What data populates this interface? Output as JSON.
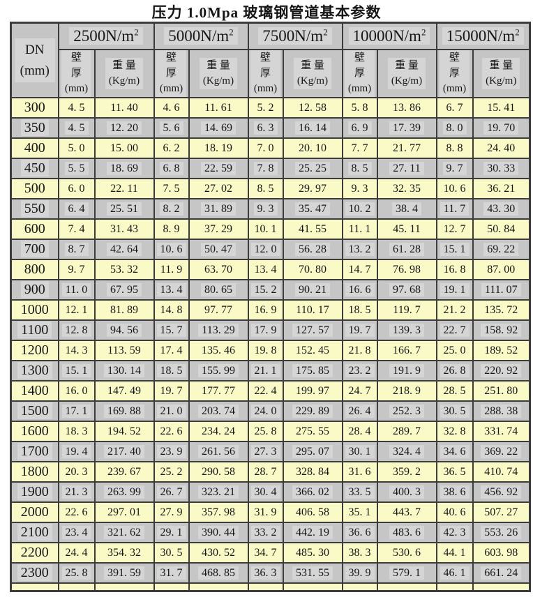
{
  "title": "压力 1.0Mpa 玻璃钢管道基本参数",
  "colors": {
    "row_yellow": "#fafac6",
    "row_gray": "#c6c6c6",
    "header_gray": "#c5c5c5",
    "border": "#3c3c3c",
    "page_background": "#ffffff"
  },
  "table": {
    "dn_header": "DN\n(mm)",
    "sub_headers": {
      "thickness": "壁\n厚\n(mm)",
      "weight": "重 量\n(Kg/m)"
    },
    "groups": [
      {
        "load": "2500N/m",
        "exp": "2"
      },
      {
        "load": "5000N/m",
        "exp": "2"
      },
      {
        "load": "7500N/m",
        "exp": "2"
      },
      {
        "load": "10000N/m",
        "exp": "2"
      },
      {
        "load": "15000N/m",
        "exp": "2"
      }
    ],
    "rows": [
      {
        "dn": "300",
        "cells": [
          "4. 5",
          "11. 40",
          "4. 6",
          "11. 61",
          "5. 2",
          "12. 58",
          "5. 8",
          "13. 86",
          "6. 7",
          "15. 41"
        ]
      },
      {
        "dn": "350",
        "cells": [
          "4. 5",
          "12. 20",
          "5. 6",
          "14. 69",
          "6. 3",
          "16. 14",
          "6. 9",
          "17. 39",
          "8. 0",
          "19. 70"
        ]
      },
      {
        "dn": "400",
        "cells": [
          "5. 0",
          "15. 00",
          "6. 2",
          "18. 19",
          "7. 0",
          "20. 10",
          "7. 7",
          "21. 77",
          "8. 8",
          "24. 40"
        ]
      },
      {
        "dn": "450",
        "cells": [
          "5. 5",
          "18. 69",
          "6. 8",
          "22. 59",
          "7. 8",
          "25. 25",
          "8. 5",
          "27. 11",
          "9. 7",
          "30. 33"
        ]
      },
      {
        "dn": "500",
        "cells": [
          "6. 0",
          "22. 11",
          "7. 5",
          "27. 02",
          "8. 5",
          "29. 97",
          "9. 3",
          "32. 35",
          "10. 6",
          "36. 21"
        ]
      },
      {
        "dn": "550",
        "cells": [
          "6. 4",
          "25. 51",
          "8. 2",
          "31. 89",
          "9. 3",
          "35. 47",
          "10. 2",
          "38. 4",
          "11. 7",
          "43. 30"
        ]
      },
      {
        "dn": "600",
        "cells": [
          "7. 4",
          "31. 43",
          "8. 9",
          "37. 29",
          "10. 1",
          "41. 55",
          "11. 1",
          "45. 11",
          "12. 7",
          "50. 84"
        ]
      },
      {
        "dn": "700",
        "cells": [
          "8. 7",
          "42. 64",
          "10. 6",
          "50. 47",
          "12. 0",
          "56. 28",
          "13. 2",
          "61. 28",
          "15. 1",
          "69. 22"
        ]
      },
      {
        "dn": "800",
        "cells": [
          "9. 7",
          "53. 32",
          "11. 9",
          "63. 70",
          "13. 4",
          "70. 80",
          "14. 7",
          "76. 98",
          "16. 8",
          "87. 00"
        ]
      },
      {
        "dn": "900",
        "cells": [
          "11. 0",
          "67. 95",
          "13. 4",
          "80. 65",
          "15. 2",
          "90. 21",
          "16. 6",
          "97. 68",
          "19. 1",
          "111. 07"
        ]
      },
      {
        "dn": "1000",
        "cells": [
          "12. 1",
          "81. 89",
          "14. 8",
          "97. 77",
          "16. 9",
          "110. 17",
          "18. 5",
          "119. 7",
          "21. 2",
          "135. 72"
        ]
      },
      {
        "dn": "1100",
        "cells": [
          "12. 8",
          "94. 56",
          "15. 7",
          "113. 29",
          "17. 9",
          "127. 57",
          "19. 7",
          "139. 3",
          "22. 7",
          "158. 92"
        ]
      },
      {
        "dn": "1200",
        "cells": [
          "14. 3",
          "113. 59",
          "17. 4",
          "135. 46",
          "19. 8",
          "152. 45",
          "21. 8",
          "166. 7",
          "25. 0",
          "189. 52"
        ]
      },
      {
        "dn": "1300",
        "cells": [
          "15. 1",
          "130. 14",
          "18. 5",
          "155. 99",
          "21. 1",
          "175. 85",
          "23. 2",
          "191. 9",
          "26. 8",
          "220. 92"
        ]
      },
      {
        "dn": "1400",
        "cells": [
          "16. 0",
          "147. 49",
          "19. 7",
          "177. 77",
          "22. 4",
          "199. 97",
          "24. 7",
          "218. 9",
          "28. 5",
          "251. 80"
        ]
      },
      {
        "dn": "1500",
        "cells": [
          "17. 1",
          "169. 88",
          "21. 0",
          "203. 74",
          "24. 0",
          "229. 89",
          "26. 4",
          "252. 3",
          "30. 5",
          "288. 38"
        ]
      },
      {
        "dn": "1600",
        "cells": [
          "18. 3",
          "194. 52",
          "22. 6",
          "234. 24",
          "25. 8",
          "275. 55",
          "28. 4",
          "289. 7",
          "32. 8",
          "331. 74"
        ]
      },
      {
        "dn": "1700",
        "cells": [
          "19. 4",
          "217. 40",
          "23. 9",
          "261. 56",
          "27. 3",
          "295. 07",
          "30. 1",
          "324. 4",
          "34. 6",
          "369. 22"
        ]
      },
      {
        "dn": "1800",
        "cells": [
          "20. 3",
          "239. 67",
          "25. 2",
          "290. 58",
          "28. 7",
          "328. 84",
          "31. 6",
          "359. 2",
          "36. 5",
          "410. 74"
        ]
      },
      {
        "dn": "1900",
        "cells": [
          "21. 3",
          "263. 99",
          "26. 7",
          "323. 21",
          "30. 4",
          "366. 02",
          "33. 5",
          "400. 3",
          "38. 6",
          "456. 92"
        ]
      },
      {
        "dn": "2000",
        "cells": [
          "22. 6",
          "297. 01",
          "27. 9",
          "357. 98",
          "31. 9",
          "406. 58",
          "35. 1",
          "443. 7",
          "40. 6",
          "507. 27"
        ]
      },
      {
        "dn": "2100",
        "cells": [
          "23. 4",
          "321. 62",
          "29. 1",
          "390. 44",
          "33. 2",
          "442. 19",
          "36. 6",
          "483. 6",
          "42. 3",
          "553. 26"
        ]
      },
      {
        "dn": "2200",
        "cells": [
          "24. 4",
          "354. 32",
          "30. 5",
          "430. 52",
          "34. 7",
          "485. 30",
          "38. 3",
          "530. 6",
          "44. 1",
          "603. 98"
        ]
      },
      {
        "dn": "2300",
        "cells": [
          "25. 8",
          "391. 59",
          "31. 7",
          "468. 85",
          "36. 3",
          "531. 55",
          "39. 9",
          "579. 1",
          "46. 1",
          "661. 24"
        ]
      }
    ]
  }
}
